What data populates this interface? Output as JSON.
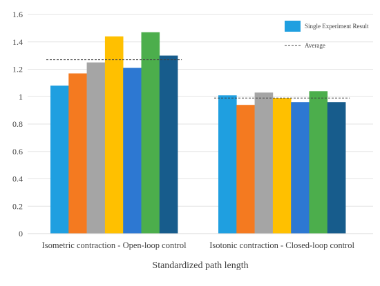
{
  "chart_data": {
    "type": "bar",
    "xlabel": "Standardized path length",
    "ylim": [
      0,
      1.6
    ],
    "yticks": [
      "0",
      "0.2",
      "0.4",
      "0.6",
      "0.8",
      "1",
      "1.2",
      "1.4",
      "1.6"
    ],
    "grid": true,
    "legend_position": "top-right",
    "legend": {
      "bar_label": "Single Experiment Result",
      "line_label": "Average"
    },
    "categories": [
      "Isometric contraction - Open-loop control",
      "Isotonic contraction - Closed-loop control"
    ],
    "groups": [
      {
        "values": [
          1.08,
          1.17,
          1.25,
          1.44,
          1.21,
          1.47,
          1.3
        ],
        "average": 1.27
      },
      {
        "values": [
          1.01,
          0.94,
          1.03,
          0.99,
          0.96,
          1.04,
          0.96
        ],
        "average": 0.99
      }
    ],
    "bar_colors": [
      "#1f9fe0",
      "#f47a20",
      "#a5a5a5",
      "#ffc000",
      "#2d78d2",
      "#4cae4c",
      "#175c8c"
    ],
    "legend_color": "#1f9fe0"
  }
}
